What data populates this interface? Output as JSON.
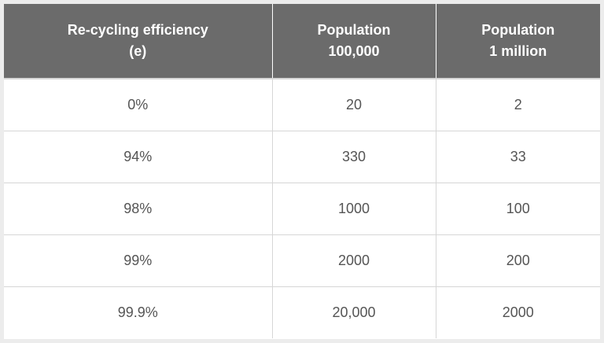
{
  "table": {
    "headers": [
      {
        "line1": "Re-cycling efficiency",
        "line2": "(e)"
      },
      {
        "line1": "Population",
        "line2": "100,000"
      },
      {
        "line1": "Population",
        "line2": "1 million"
      }
    ],
    "rows": [
      [
        "0%",
        "20",
        "2"
      ],
      [
        "94%",
        "330",
        "33"
      ],
      [
        "98%",
        "1000",
        "100"
      ],
      [
        "99%",
        "2000",
        "200"
      ],
      [
        "99.9%",
        "20,000",
        "2000"
      ]
    ]
  },
  "colors": {
    "header_bg": "#6b6b6b",
    "header_text": "#ffffff",
    "cell_text": "#555555",
    "grid": "#d6d6d6"
  }
}
